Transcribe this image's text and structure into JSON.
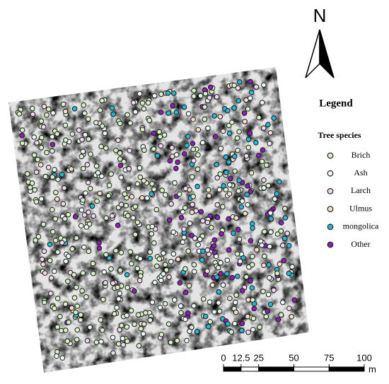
{
  "north": "N",
  "legend": {
    "title": "Legend",
    "subtitle": "Tree species",
    "items": [
      {
        "label": "Brich",
        "color": "#d6efc4"
      },
      {
        "label": "Ash",
        "color": "#eaf7f3"
      },
      {
        "label": "Larch",
        "color": "#f1d6f0"
      },
      {
        "label": "Ulmus",
        "color": "#f6dccb"
      },
      {
        "label": "mongolica",
        "color": "#28b6d6"
      },
      {
        "label": "Other",
        "color": "#8b1fb5"
      }
    ]
  },
  "scale_bar": {
    "ticks": [
      0,
      12.5,
      25,
      50,
      75,
      100
    ],
    "unit": "m"
  }
}
